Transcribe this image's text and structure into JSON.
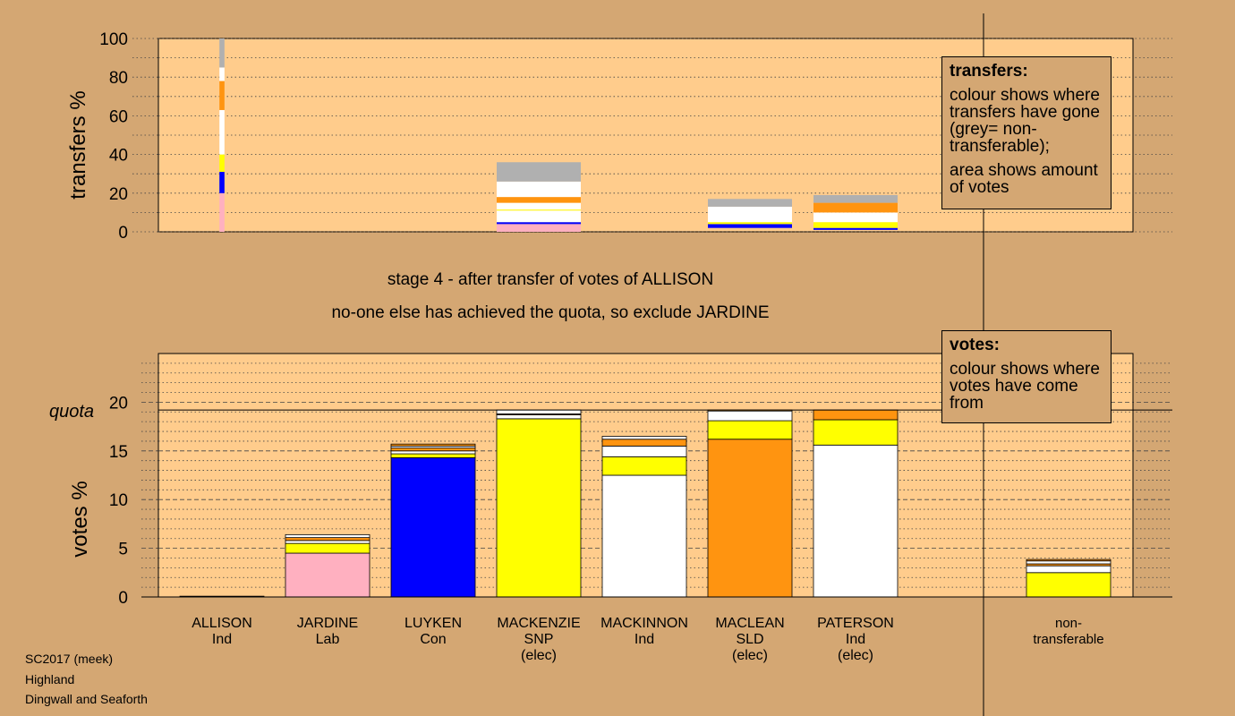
{
  "colors": {
    "background": "#d4a773",
    "plot_bg": "#ffcc8c",
    "pink": "#ffb0c0",
    "blue": "#0000ff",
    "yellow": "#ffff00",
    "white": "#ffffff",
    "orange": "#ff9410",
    "grey": "#b0b0b0"
  },
  "captions": {
    "line1": "stage 4 - after transfer of votes of ALLISON",
    "line2": "no-one else has achieved the quota, so exclude JARDINE"
  },
  "meta": {
    "line1": "SC2017 (meek)",
    "line2": "Highland",
    "line3": "Dingwall and Seaforth"
  },
  "legend_transfers": {
    "title": "transfers:",
    "p1": "colour shows where transfers have gone (grey= non-transferable);",
    "p2": "area shows amount of votes"
  },
  "legend_votes": {
    "title": "votes:",
    "p1": "colour shows where votes have come from"
  },
  "quota_label": "quota",
  "chart_data": [
    {
      "type": "bar",
      "stacked": true,
      "ylabel": "transfers %",
      "ylim": [
        0,
        100
      ],
      "yticks": [
        0,
        20,
        40,
        60,
        80,
        100
      ],
      "grid": "dotted",
      "bars": [
        {
          "key": "ALLISON",
          "width_rel": 0.06,
          "segments": [
            {
              "color": "pink",
              "from": 0,
              "to": 20
            },
            {
              "color": "blue",
              "from": 20,
              "to": 31
            },
            {
              "color": "yellow",
              "from": 31,
              "to": 40
            },
            {
              "color": "white",
              "from": 40,
              "to": 63
            },
            {
              "color": "orange",
              "from": 63,
              "to": 78
            },
            {
              "color": "white",
              "from": 78,
              "to": 85
            },
            {
              "color": "grey",
              "from": 85,
              "to": 100
            }
          ]
        },
        {
          "key": "MACKENZIE",
          "width_rel": 1.0,
          "segments": [
            {
              "color": "pink",
              "from": 0,
              "to": 4
            },
            {
              "color": "blue",
              "from": 4,
              "to": 5
            },
            {
              "color": "white",
              "from": 5,
              "to": 11
            },
            {
              "color": "yellow",
              "from": 11,
              "to": 11.5
            },
            {
              "color": "white",
              "from": 11.5,
              "to": 15
            },
            {
              "color": "orange",
              "from": 15,
              "to": 18
            },
            {
              "color": "white",
              "from": 18,
              "to": 26
            },
            {
              "color": "grey",
              "from": 26,
              "to": 36
            }
          ]
        },
        {
          "key": "MACLEAN",
          "width_rel": 1.0,
          "segments": [
            {
              "color": "blue",
              "from": 2,
              "to": 4
            },
            {
              "color": "yellow",
              "from": 4,
              "to": 5
            },
            {
              "color": "white",
              "from": 5,
              "to": 13
            },
            {
              "color": "grey",
              "from": 13,
              "to": 17
            }
          ]
        },
        {
          "key": "PATERSON",
          "width_rel": 1.0,
          "segments": [
            {
              "color": "blue",
              "from": 1,
              "to": 2
            },
            {
              "color": "yellow",
              "from": 2,
              "to": 5
            },
            {
              "color": "white",
              "from": 5,
              "to": 10
            },
            {
              "color": "orange",
              "from": 10,
              "to": 15
            },
            {
              "color": "grey",
              "from": 15,
              "to": 19
            }
          ]
        }
      ]
    },
    {
      "type": "bar",
      "stacked": true,
      "ylabel": "votes %",
      "ylim": [
        0,
        25
      ],
      "yticks": [
        0,
        5,
        10,
        15,
        20
      ],
      "grid": "dashed",
      "quota": 19.2,
      "categories": [
        "ALLISON",
        "JARDINE",
        "LUYKEN",
        "MACKENZIE",
        "MACKINNON",
        "MACLEAN",
        "PATERSON",
        "non-transferable"
      ],
      "bars": [
        {
          "key": "ALLISON",
          "label": [
            "ALLISON",
            "Ind"
          ],
          "segments": [
            {
              "color": "pink",
              "from": 0,
              "to": 0.08
            }
          ]
        },
        {
          "key": "JARDINE",
          "label": [
            "JARDINE",
            "Lab"
          ],
          "segments": [
            {
              "color": "pink",
              "from": 0,
              "to": 4.5
            },
            {
              "color": "yellow",
              "from": 4.5,
              "to": 5.5
            },
            {
              "color": "white",
              "from": 5.5,
              "to": 5.8
            },
            {
              "color": "orange",
              "from": 5.8,
              "to": 6.1
            },
            {
              "color": "white",
              "from": 6.1,
              "to": 6.4
            }
          ]
        },
        {
          "key": "LUYKEN",
          "label": [
            "LUYKEN",
            "Con"
          ],
          "segments": [
            {
              "color": "blue",
              "from": 0,
              "to": 14.3
            },
            {
              "color": "yellow",
              "from": 14.3,
              "to": 14.7
            },
            {
              "color": "white",
              "from": 14.7,
              "to": 15.0
            },
            {
              "color": "orange",
              "from": 15.0,
              "to": 15.3
            },
            {
              "color": "white",
              "from": 15.3,
              "to": 15.5
            },
            {
              "color": "orange",
              "from": 15.5,
              "to": 15.7
            }
          ]
        },
        {
          "key": "MACKENZIE",
          "label": [
            "MACKENZIE",
            "SNP",
            "(elec)"
          ],
          "segments": [
            {
              "color": "yellow",
              "from": 0,
              "to": 18.3
            },
            {
              "color": "white",
              "from": 18.3,
              "to": 18.7
            },
            {
              "color": "orange",
              "from": 18.7,
              "to": 18.8
            },
            {
              "color": "white",
              "from": 18.8,
              "to": 19.2
            }
          ]
        },
        {
          "key": "MACKINNON",
          "label": [
            "MACKINNON",
            "Ind"
          ],
          "segments": [
            {
              "color": "white",
              "from": 0,
              "to": 12.5
            },
            {
              "color": "yellow",
              "from": 12.5,
              "to": 14.4
            },
            {
              "color": "white",
              "from": 14.4,
              "to": 15.5
            },
            {
              "color": "orange",
              "from": 15.5,
              "to": 16.2
            },
            {
              "color": "white",
              "from": 16.2,
              "to": 16.5
            }
          ]
        },
        {
          "key": "MACLEAN",
          "label": [
            "MACLEAN",
            "SLD",
            "(elec)"
          ],
          "segments": [
            {
              "color": "orange",
              "from": 0,
              "to": 16.2
            },
            {
              "color": "yellow",
              "from": 16.2,
              "to": 18.1
            },
            {
              "color": "white",
              "from": 18.1,
              "to": 19.1
            },
            {
              "color": "orange",
              "from": 19.1,
              "to": 19.2
            }
          ]
        },
        {
          "key": "PATERSON",
          "label": [
            "PATERSON",
            "Ind",
            "(elec)"
          ],
          "segments": [
            {
              "color": "white",
              "from": 0,
              "to": 15.6
            },
            {
              "color": "yellow",
              "from": 15.6,
              "to": 18.2
            },
            {
              "color": "orange",
              "from": 18.2,
              "to": 19.2
            }
          ]
        },
        {
          "key": "non-transferable",
          "label": [
            "non-",
            "transferable"
          ],
          "segments": [
            {
              "color": "yellow",
              "from": 0,
              "to": 2.5
            },
            {
              "color": "white",
              "from": 2.5,
              "to": 3.2
            },
            {
              "color": "orange",
              "from": 3.2,
              "to": 3.4
            },
            {
              "color": "white",
              "from": 3.4,
              "to": 3.7
            },
            {
              "color": "orange",
              "from": 3.7,
              "to": 3.85
            }
          ]
        }
      ]
    }
  ]
}
